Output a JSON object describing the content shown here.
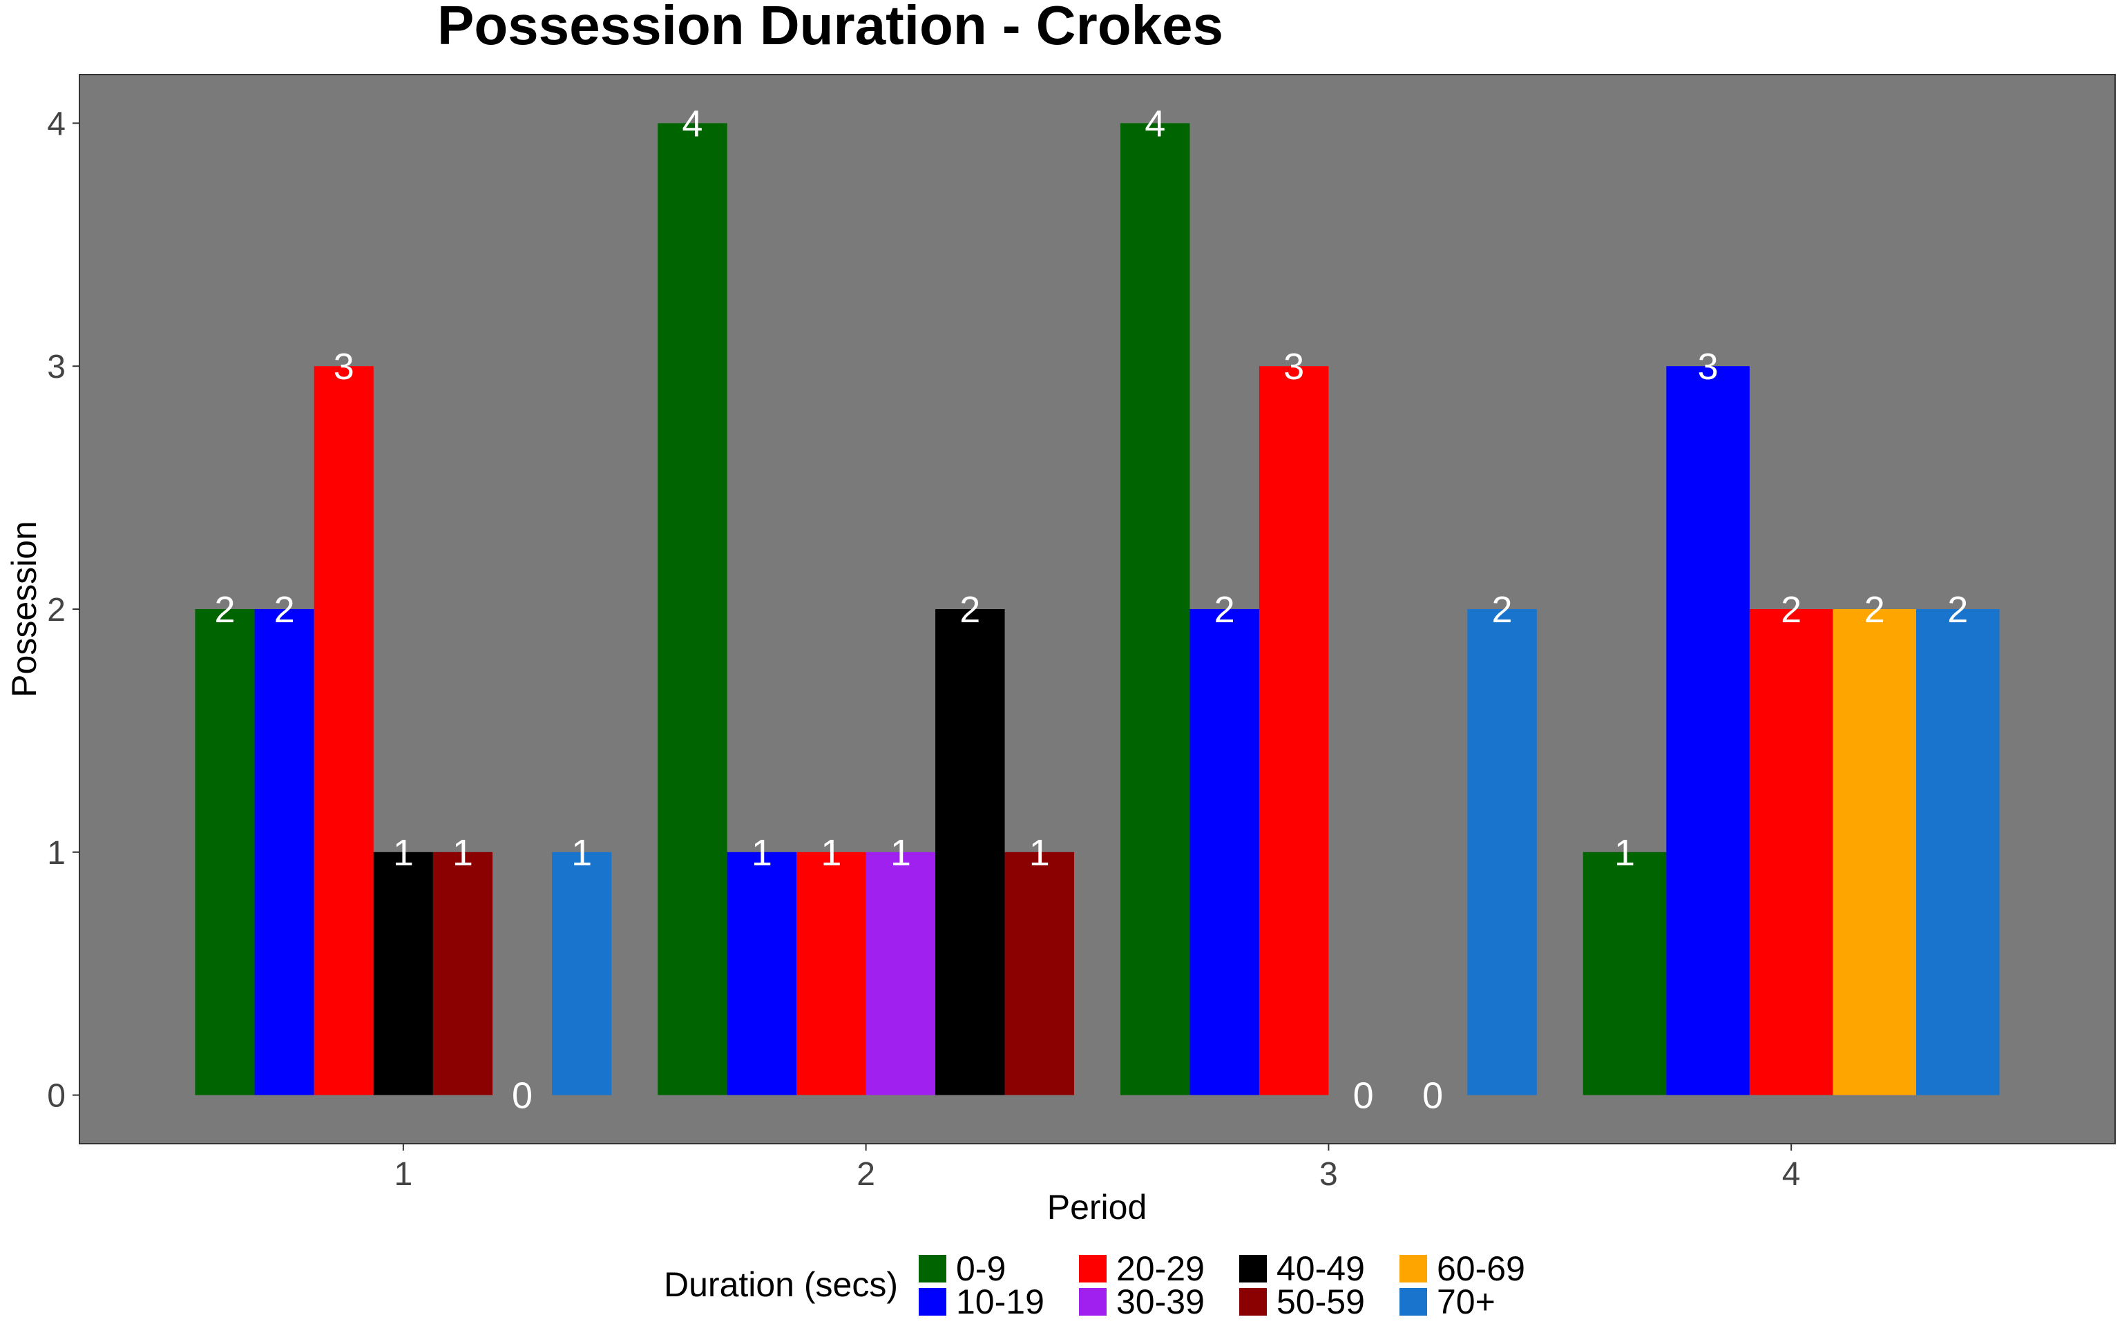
{
  "chart_data": {
    "type": "bar",
    "title": "Possession Duration - Crokes",
    "xlabel": "Period",
    "ylabel": "Possession",
    "categories": [
      "1",
      "2",
      "3",
      "4"
    ],
    "ylim": [
      -0.2,
      4.2
    ],
    "yticks": [
      0,
      1,
      2,
      3,
      4
    ],
    "grid": false,
    "background_color": "#7a7a7a",
    "legend": {
      "title": "Duration (secs)",
      "position": "bottom"
    },
    "series": [
      {
        "name": "0-9",
        "color": "#006400",
        "values": [
          2,
          4,
          4,
          1
        ]
      },
      {
        "name": "10-19",
        "color": "#0000ff",
        "values": [
          2,
          1,
          2,
          3
        ]
      },
      {
        "name": "20-29",
        "color": "#ff0000",
        "values": [
          3,
          1,
          3,
          2
        ]
      },
      {
        "name": "30-39",
        "color": "#a020f0",
        "values": [
          null,
          1,
          null,
          null
        ]
      },
      {
        "name": "40-49",
        "color": "#000000",
        "values": [
          1,
          2,
          0,
          null
        ]
      },
      {
        "name": "50-59",
        "color": "#8b0000",
        "values": [
          1,
          1,
          0,
          null
        ]
      },
      {
        "name": "60-69",
        "color": "#ffa500",
        "values": [
          0,
          null,
          null,
          2
        ]
      },
      {
        "name": "70+",
        "color": "#1874cd",
        "values": [
          1,
          null,
          2,
          2
        ]
      }
    ]
  }
}
